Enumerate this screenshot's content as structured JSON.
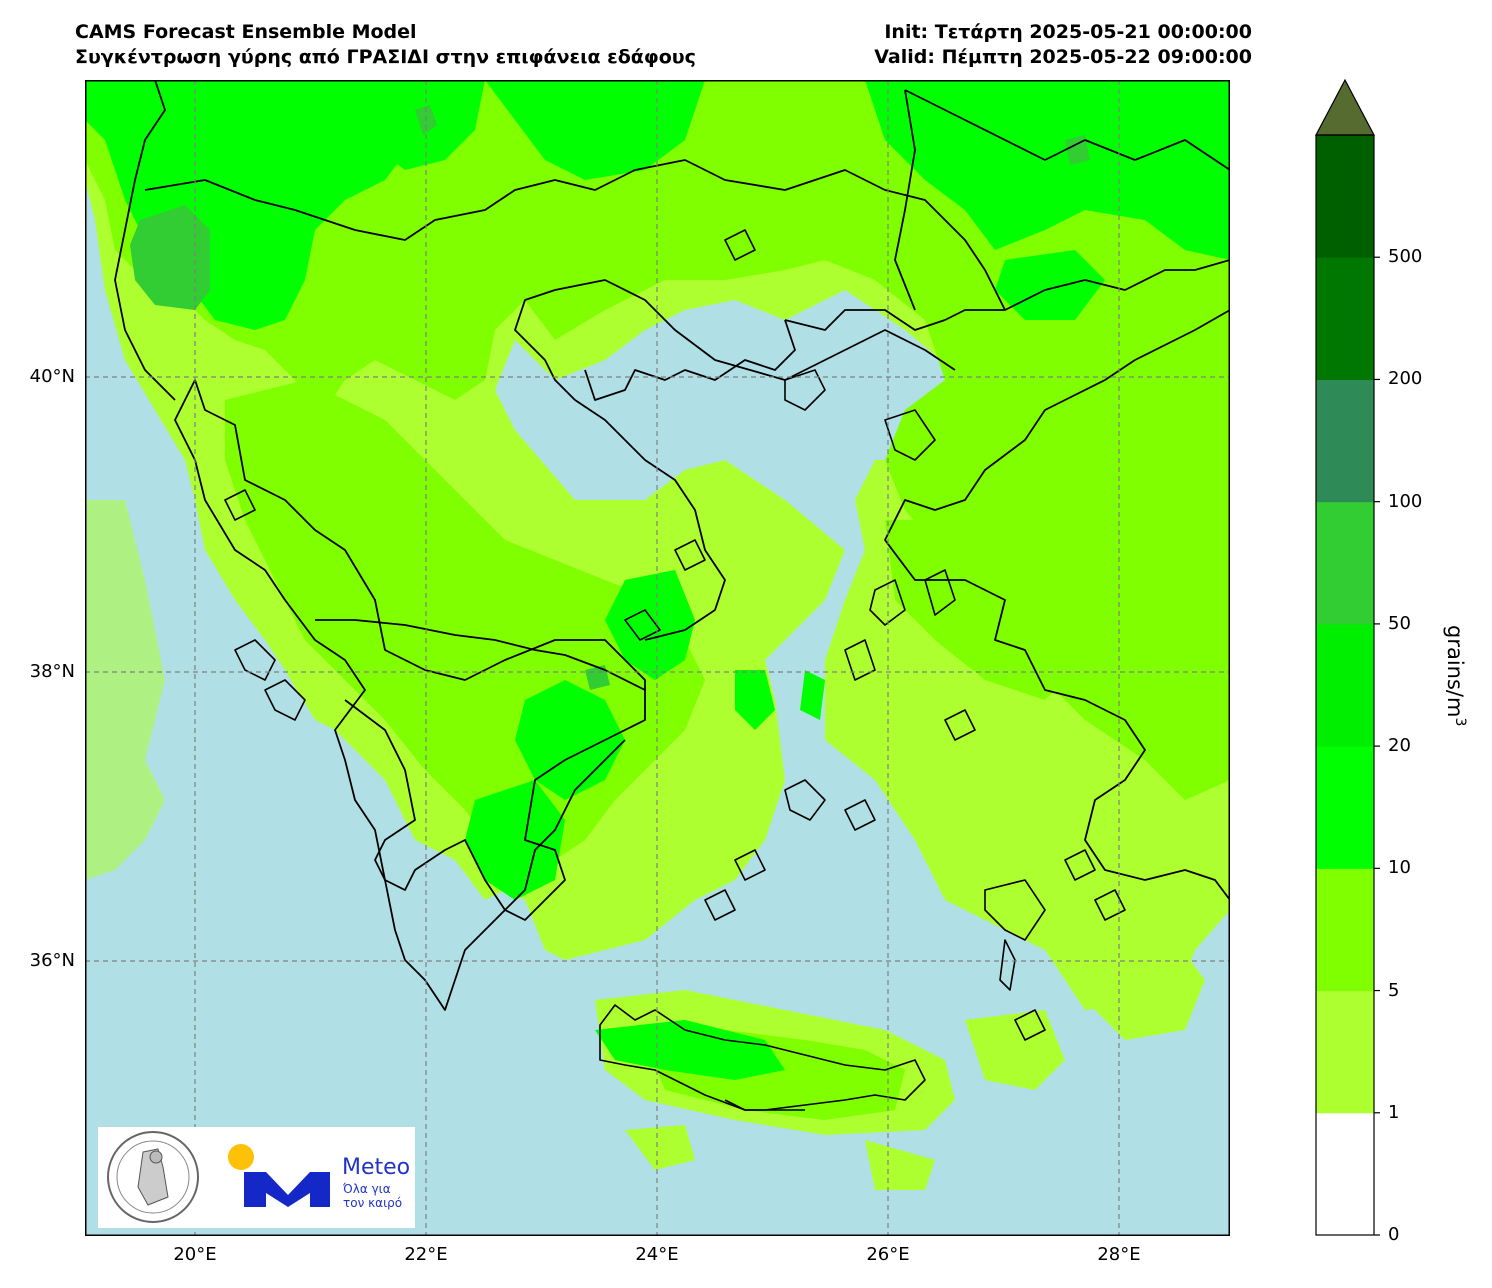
{
  "header": {
    "model_title": "CAMS Forecast Ensemble Model",
    "subtitle": "Συγκέντρωση γύρης από ΓΡΑΣΙΔΙ στην επιφάνεια εδάφους",
    "init": "Init: Τετάρτη 2025-05-21 00:00:00",
    "valid": "Valid: Πέμπτη 2025-05-22 09:00:00"
  },
  "map": {
    "lon_range": [
      19.0,
      28.9
    ],
    "lat_range": [
      34.1,
      41.95
    ],
    "lon_ticks": [
      "20°E",
      "22°E",
      "24°E",
      "26°E",
      "28°E"
    ],
    "lat_ticks": [
      "40°N",
      "38°N",
      "36°N"
    ],
    "sea_color": "#b0e0e6",
    "gridlines": true
  },
  "colorbar": {
    "title": "grains/m",
    "title_superscript": "3",
    "levels": [
      "0",
      "1",
      "5",
      "10",
      "20",
      "50",
      "100",
      "200",
      "500"
    ],
    "colors": [
      "#ffffff",
      "#adff2f",
      "#7fff00",
      "#00ff00",
      "#00ee00",
      "#32cd32",
      "#2e8b57",
      "#007700",
      "#006000",
      "#556b2f"
    ],
    "extend": "max"
  },
  "logos": {
    "observatory": "observatory-seal-icon",
    "meteo_brand": "Meteo",
    "meteo_tagline_1": "Όλα για",
    "meteo_tagline_2": "τον καιρό",
    "meteo_sun_color": "#ffc107",
    "meteo_m_color": "#1428c8"
  }
}
